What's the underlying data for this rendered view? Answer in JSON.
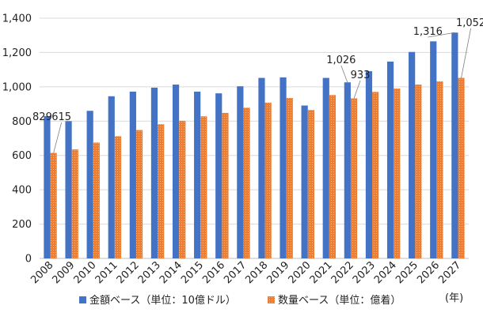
{
  "chart_data": {
    "type": "bar",
    "categories": [
      "2008",
      "2009",
      "2010",
      "2011",
      "2012",
      "2013",
      "2014",
      "2015",
      "2016",
      "2017",
      "2018",
      "2019",
      "2020",
      "2021",
      "2022",
      "2023",
      "2024",
      "2025",
      "2026",
      "2027"
    ],
    "series": [
      {
        "name": "金額ベース（単位：10億ドル）",
        "color": "#4472C4",
        "values": [
          829,
          800,
          860,
          945,
          972,
          995,
          1013,
          972,
          962,
          1003,
          1052,
          1055,
          891,
          1052,
          1026,
          1091,
          1147,
          1203,
          1265,
          1316
        ]
      },
      {
        "name": "数量ベース（単位：億着）",
        "color": "#ED7D31",
        "values": [
          615,
          635,
          675,
          712,
          748,
          782,
          802,
          828,
          848,
          878,
          908,
          935,
          865,
          952,
          933,
          970,
          990,
          1013,
          1032,
          1052
        ]
      }
    ],
    "annotations": [
      {
        "text": "829",
        "category": "2008",
        "series": 0
      },
      {
        "text": "615",
        "category": "2008",
        "series": 1
      },
      {
        "text": "1,026",
        "category": "2022",
        "series": 0
      },
      {
        "text": "933",
        "category": "2022",
        "series": 1
      },
      {
        "text": "1,316",
        "category": "2027",
        "series": 0
      },
      {
        "text": "1,052",
        "category": "2027",
        "series": 1
      }
    ],
    "x_unit_label": "(年)",
    "ylim": [
      0,
      1400
    ],
    "yticks": [
      0,
      200,
      400,
      600,
      800,
      1000,
      1200,
      1400
    ],
    "ytick_labels": [
      "0",
      "200",
      "400",
      "600",
      "800",
      "1,000",
      "1,200",
      "1,400"
    ],
    "grid": true,
    "legend_position": "bottom"
  }
}
